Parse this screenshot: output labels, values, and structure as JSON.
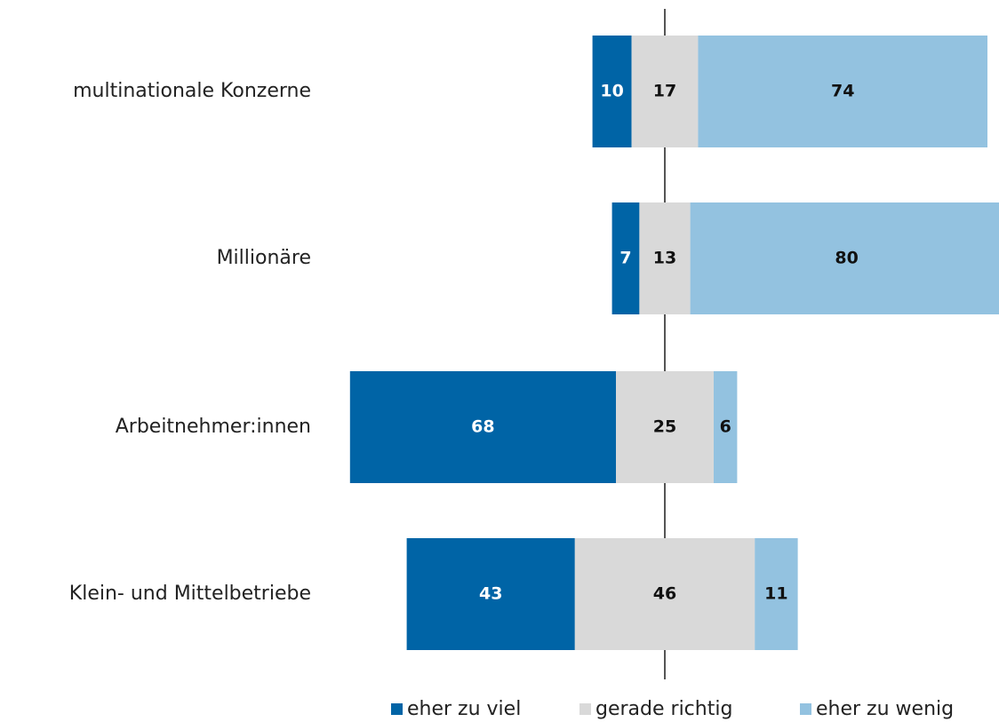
{
  "chart_data": {
    "type": "diverging_bar",
    "categories": [
      "multinationale Konzerne",
      "Millionäre",
      "Arbeitnehmer:innen",
      "Klein- und Mittelbetriebe"
    ],
    "series": [
      {
        "name": "eher zu viel",
        "color": "#0064a6",
        "values": [
          10,
          7,
          68,
          43
        ]
      },
      {
        "name": "gerade richtig",
        "color": "#d9d9d9",
        "values": [
          17,
          13,
          25,
          46
        ]
      },
      {
        "name": "eher zu wenig",
        "color": "#93c2e0",
        "values": [
          74,
          80,
          6,
          11
        ]
      }
    ]
  }
}
